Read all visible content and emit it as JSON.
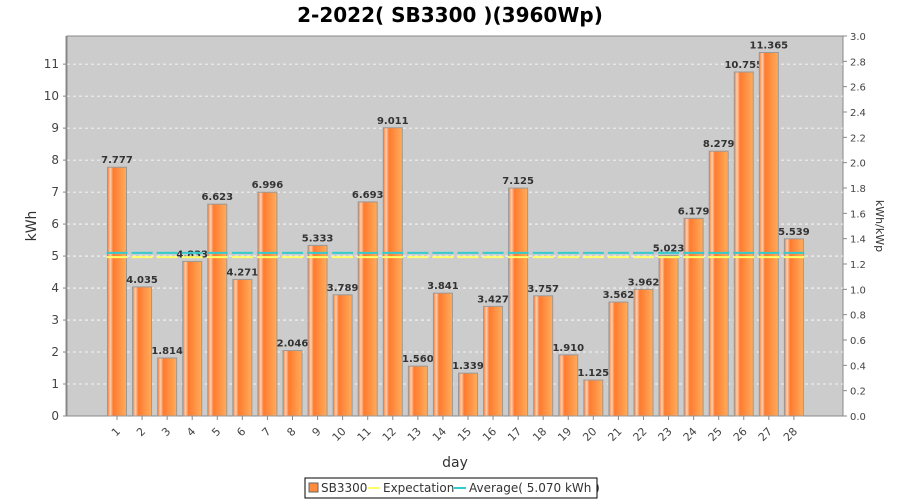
{
  "chart_data": {
    "type": "bar",
    "title": "2-2022( SB3300 )(3960Wp)",
    "xlabel": "day",
    "ylabel": "kWh",
    "y2label": "kWh/kWp",
    "ylim": [
      0,
      11.88
    ],
    "y2lim": [
      0,
      3.0
    ],
    "yticks": [
      0,
      1,
      2,
      3,
      4,
      5,
      6,
      7,
      8,
      9,
      10,
      11
    ],
    "y2ticks": [
      "0.0",
      "0.2",
      "0.4",
      "0.6",
      "0.8",
      "1.0",
      "1.2",
      "1.4",
      "1.6",
      "1.8",
      "2.0",
      "2.2",
      "2.4",
      "2.6",
      "2.8",
      "3.0"
    ],
    "categories": [
      "1",
      "2",
      "3",
      "4",
      "5",
      "6",
      "7",
      "8",
      "9",
      "10",
      "11",
      "12",
      "13",
      "14",
      "15",
      "16",
      "17",
      "18",
      "19",
      "20",
      "21",
      "22",
      "23",
      "24",
      "25",
      "26",
      "27",
      "28"
    ],
    "series": [
      {
        "name": "SB3300",
        "values": [
          7.777,
          4.035,
          1.814,
          4.833,
          6.623,
          4.271,
          6.996,
          2.046,
          5.333,
          3.789,
          6.693,
          9.011,
          1.56,
          3.841,
          1.339,
          3.427,
          7.125,
          3.757,
          1.91,
          1.125,
          3.562,
          3.962,
          5.023,
          6.179,
          8.279,
          10.755,
          11.365,
          5.539
        ],
        "color": "#ff8c3c"
      }
    ],
    "expectation": {
      "name": "Expectation",
      "value": 5.0,
      "color": "#ffff66"
    },
    "average": {
      "name": "Average( 5.070 kWh )",
      "value": 5.07,
      "color": "#33cccc"
    },
    "grid": true,
    "legend": "bottom-center"
  }
}
